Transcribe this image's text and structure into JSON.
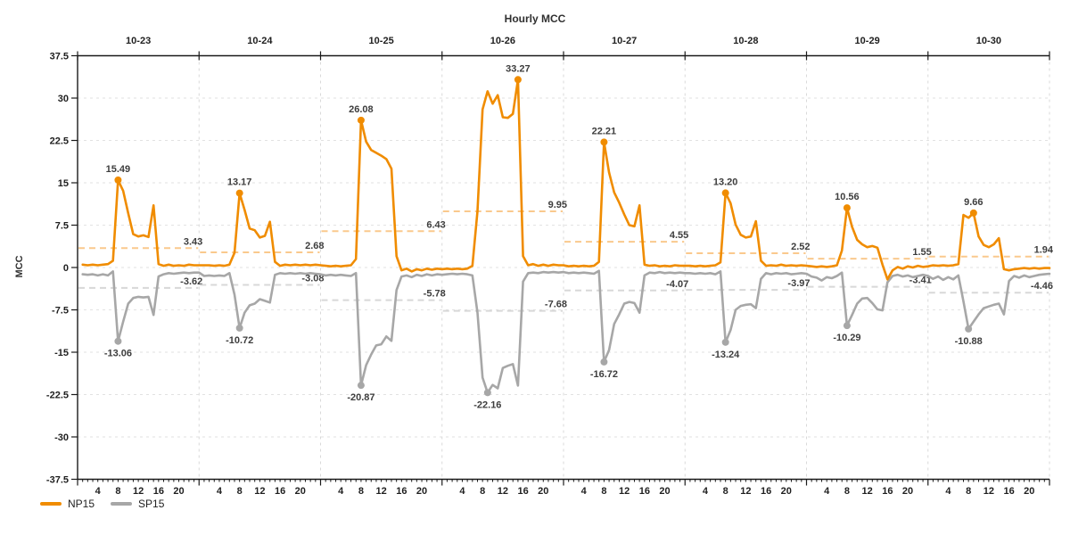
{
  "title": "Hourly MCC",
  "y_axis": {
    "label": "MCC",
    "min": -37.5,
    "max": 37.5,
    "ticks": [
      37.5,
      30,
      22.5,
      15,
      7.5,
      0,
      -7.5,
      -15,
      -22.5,
      -30,
      -37.5
    ]
  },
  "x_axis": {
    "hour_ticks": [
      4,
      8,
      12,
      16,
      20
    ],
    "hours_per_day": 24
  },
  "legend": [
    {
      "label": "NP15",
      "color": "#F08C00"
    },
    {
      "label": "SP15",
      "color": "#A7A7A7"
    }
  ],
  "colors": {
    "np15": "#F08C00",
    "sp15": "#A7A7A7",
    "np15_avg_dash": "#FAC98D",
    "sp15_avg_dash": "#D8D8D8",
    "hgrid": "#E2E2E2",
    "vgrid": "#D9D9D9",
    "axis": "#1A1A1A"
  },
  "chart_data": {
    "type": "line",
    "title": "Hourly MCC",
    "xlabel": "",
    "ylabel": "MCC",
    "ylim": [
      -37.5,
      37.5
    ],
    "y_ticks": [
      37.5,
      30,
      22.5,
      15,
      7.5,
      0,
      -7.5,
      -15,
      -22.5,
      -30,
      -37.5
    ],
    "grid": true,
    "legend_position": "bottom-left",
    "series_names": [
      "NP15",
      "SP15"
    ],
    "days": [
      {
        "date": "10-23",
        "np15": [
          0.5,
          0.4,
          0.5,
          0.4,
          0.5,
          0.6,
          1.2,
          15.49,
          13.6,
          9.6,
          5.9,
          5.5,
          5.7,
          5.4,
          11.0,
          0.6,
          0.3,
          0.5,
          0.3,
          0.4,
          0.3,
          0.5,
          0.4,
          0.4
        ],
        "sp15": [
          -1.2,
          -1.3,
          -1.2,
          -1.4,
          -1.2,
          -1.4,
          -0.7,
          -13.06,
          -9.6,
          -6.4,
          -5.4,
          -5.2,
          -5.3,
          -5.2,
          -8.4,
          -1.6,
          -1.2,
          -1.0,
          -1.1,
          -1.0,
          -0.9,
          -1.0,
          -0.9,
          -0.9
        ],
        "np15_avg": 3.43,
        "sp15_avg": -3.62,
        "np15_peak": {
          "hour": 8,
          "value": 15.49
        },
        "sp15_trough": {
          "hour": 8,
          "value": -13.06
        }
      },
      {
        "date": "10-24",
        "np15": [
          0.4,
          0.4,
          0.3,
          0.4,
          0.3,
          0.5,
          2.6,
          13.17,
          10.2,
          6.9,
          6.6,
          5.3,
          5.6,
          8.1,
          1.0,
          0.3,
          0.5,
          0.4,
          0.5,
          0.4,
          0.5,
          0.4,
          0.5,
          0.4
        ],
        "sp15": [
          -1.5,
          -1.4,
          -1.5,
          -1.4,
          -1.5,
          -1.0,
          -4.8,
          -10.72,
          -8.0,
          -6.7,
          -6.4,
          -5.6,
          -5.9,
          -6.2,
          -1.3,
          -1.0,
          -1.1,
          -1.0,
          -1.1,
          -1.0,
          -1.1,
          -1.0,
          -1.1,
          -1.2
        ],
        "np15_avg": 2.68,
        "sp15_avg": -3.08,
        "np15_peak": {
          "hour": 8,
          "value": 13.17
        },
        "sp15_trough": {
          "hour": 8,
          "value": -10.72
        }
      },
      {
        "date": "10-25",
        "np15": [
          0.3,
          0.2,
          0.3,
          0.2,
          0.3,
          0.4,
          1.5,
          26.08,
          22.3,
          20.8,
          20.3,
          19.8,
          19.2,
          17.5,
          2.0,
          -0.5,
          -0.2,
          -0.7,
          -0.3,
          -0.5,
          -0.2,
          -0.4,
          -0.2,
          -0.3
        ],
        "sp15": [
          -1.4,
          -1.3,
          -1.4,
          -1.3,
          -1.4,
          -1.5,
          -1.0,
          -20.87,
          -17.3,
          -15.4,
          -13.8,
          -13.6,
          -12.2,
          -13.0,
          -4.0,
          -1.6,
          -1.4,
          -1.7,
          -1.3,
          -1.5,
          -1.2,
          -1.4,
          -1.2,
          -1.3
        ],
        "np15_avg": 6.43,
        "sp15_avg": -5.78,
        "np15_peak": {
          "hour": 8,
          "value": 26.08
        },
        "sp15_trough": {
          "hour": 8,
          "value": -20.87
        }
      },
      {
        "date": "10-26",
        "np15": [
          -0.2,
          -0.3,
          -0.2,
          -0.3,
          -0.2,
          0.3,
          10.0,
          28.0,
          31.2,
          29.0,
          30.5,
          26.6,
          26.5,
          27.2,
          33.27,
          2.0,
          0.4,
          0.6,
          0.3,
          0.5,
          0.3,
          0.5,
          0.4,
          0.4
        ],
        "sp15": [
          -1.2,
          -1.1,
          -1.2,
          -1.1,
          -1.2,
          -1.4,
          -8.0,
          -19.5,
          -22.16,
          -20.8,
          -21.4,
          -17.8,
          -17.4,
          -17.1,
          -20.9,
          -2.5,
          -1.0,
          -0.9,
          -1.0,
          -0.8,
          -0.9,
          -0.8,
          -0.9,
          -0.8
        ],
        "np15_avg": 9.95,
        "sp15_avg": -7.68,
        "np15_peak": {
          "hour": 15,
          "value": 33.27
        },
        "sp15_trough": {
          "hour": 9,
          "value": -22.16
        }
      },
      {
        "date": "10-27",
        "np15": [
          0.2,
          0.3,
          0.2,
          0.3,
          0.2,
          0.3,
          1.0,
          22.21,
          16.8,
          13.3,
          11.5,
          9.4,
          7.5,
          7.3,
          11.0,
          0.5,
          0.3,
          0.4,
          0.2,
          0.3,
          0.2,
          0.4,
          0.3,
          0.3
        ],
        "sp15": [
          -1.0,
          -0.9,
          -1.0,
          -0.9,
          -1.0,
          -1.1,
          -0.6,
          -16.72,
          -14.6,
          -10.0,
          -8.3,
          -6.4,
          -6.1,
          -6.3,
          -8.0,
          -1.4,
          -0.9,
          -1.0,
          -0.8,
          -1.0,
          -0.9,
          -1.0,
          -0.9,
          -1.0
        ],
        "np15_avg": 4.55,
        "sp15_avg": -4.07,
        "np15_peak": {
          "hour": 8,
          "value": 22.21
        },
        "sp15_trough": {
          "hour": 8,
          "value": -16.72
        }
      },
      {
        "date": "10-28",
        "np15": [
          0.3,
          0.2,
          0.3,
          0.2,
          0.3,
          0.4,
          0.9,
          13.2,
          11.4,
          7.6,
          5.8,
          5.3,
          5.5,
          8.2,
          1.2,
          0.3,
          0.4,
          0.3,
          0.5,
          0.3,
          0.4,
          0.3,
          0.4,
          0.3
        ],
        "sp15": [
          -1.0,
          -1.1,
          -1.0,
          -1.1,
          -1.0,
          -1.2,
          -0.7,
          -13.24,
          -11.1,
          -7.5,
          -6.8,
          -6.6,
          -6.5,
          -7.2,
          -2.0,
          -1.0,
          -1.2,
          -1.0,
          -1.1,
          -1.0,
          -1.2,
          -1.1,
          -1.0,
          -1.1
        ],
        "np15_avg": 2.52,
        "sp15_avg": -3.97,
        "np15_peak": {
          "hour": 8,
          "value": 13.2
        },
        "sp15_trough": {
          "hour": 8,
          "value": -13.24
        }
      },
      {
        "date": "10-29",
        "np15": [
          0.2,
          0.1,
          0.2,
          0.1,
          0.2,
          0.4,
          3.0,
          10.56,
          7.2,
          4.9,
          4.1,
          3.6,
          3.8,
          3.5,
          0.5,
          -2.1,
          -0.5,
          0.1,
          -0.2,
          0.2,
          0.0,
          0.3,
          0.1,
          0.2
        ],
        "sp15": [
          -1.6,
          -1.8,
          -2.3,
          -1.7,
          -1.9,
          -1.5,
          -0.9,
          -10.29,
          -8.4,
          -6.4,
          -5.5,
          -5.4,
          -6.3,
          -7.4,
          -7.6,
          -2.6,
          -1.5,
          -1.3,
          -1.6,
          -1.4,
          -1.7,
          -1.5,
          -1.3,
          -1.5
        ],
        "np15_avg": 1.55,
        "sp15_avg": -3.41,
        "np15_peak": {
          "hour": 8,
          "value": 10.56
        },
        "sp15_trough": {
          "hour": 8,
          "value": -10.29
        }
      },
      {
        "date": "10-30",
        "np15": [
          0.4,
          0.3,
          0.4,
          0.3,
          0.4,
          0.6,
          9.3,
          8.8,
          9.66,
          5.5,
          4.0,
          3.6,
          4.1,
          5.2,
          -0.3,
          -0.5,
          -0.3,
          -0.2,
          -0.1,
          -0.2,
          -0.1,
          -0.2,
          -0.1,
          -0.1
        ],
        "sp15": [
          -2.0,
          -1.6,
          -2.2,
          -1.7,
          -2.1,
          -1.4,
          -6.0,
          -10.88,
          -9.6,
          -8.3,
          -7.2,
          -6.9,
          -6.6,
          -6.4,
          -8.3,
          -2.4,
          -1.5,
          -1.8,
          -1.4,
          -1.7,
          -1.5,
          -1.3,
          -1.2,
          -1.1
        ],
        "np15_avg": 1.94,
        "sp15_avg": -4.46,
        "np15_peak": {
          "hour": 9,
          "value": 9.66
        },
        "sp15_trough": {
          "hour": 8,
          "value": -10.88
        }
      }
    ]
  }
}
